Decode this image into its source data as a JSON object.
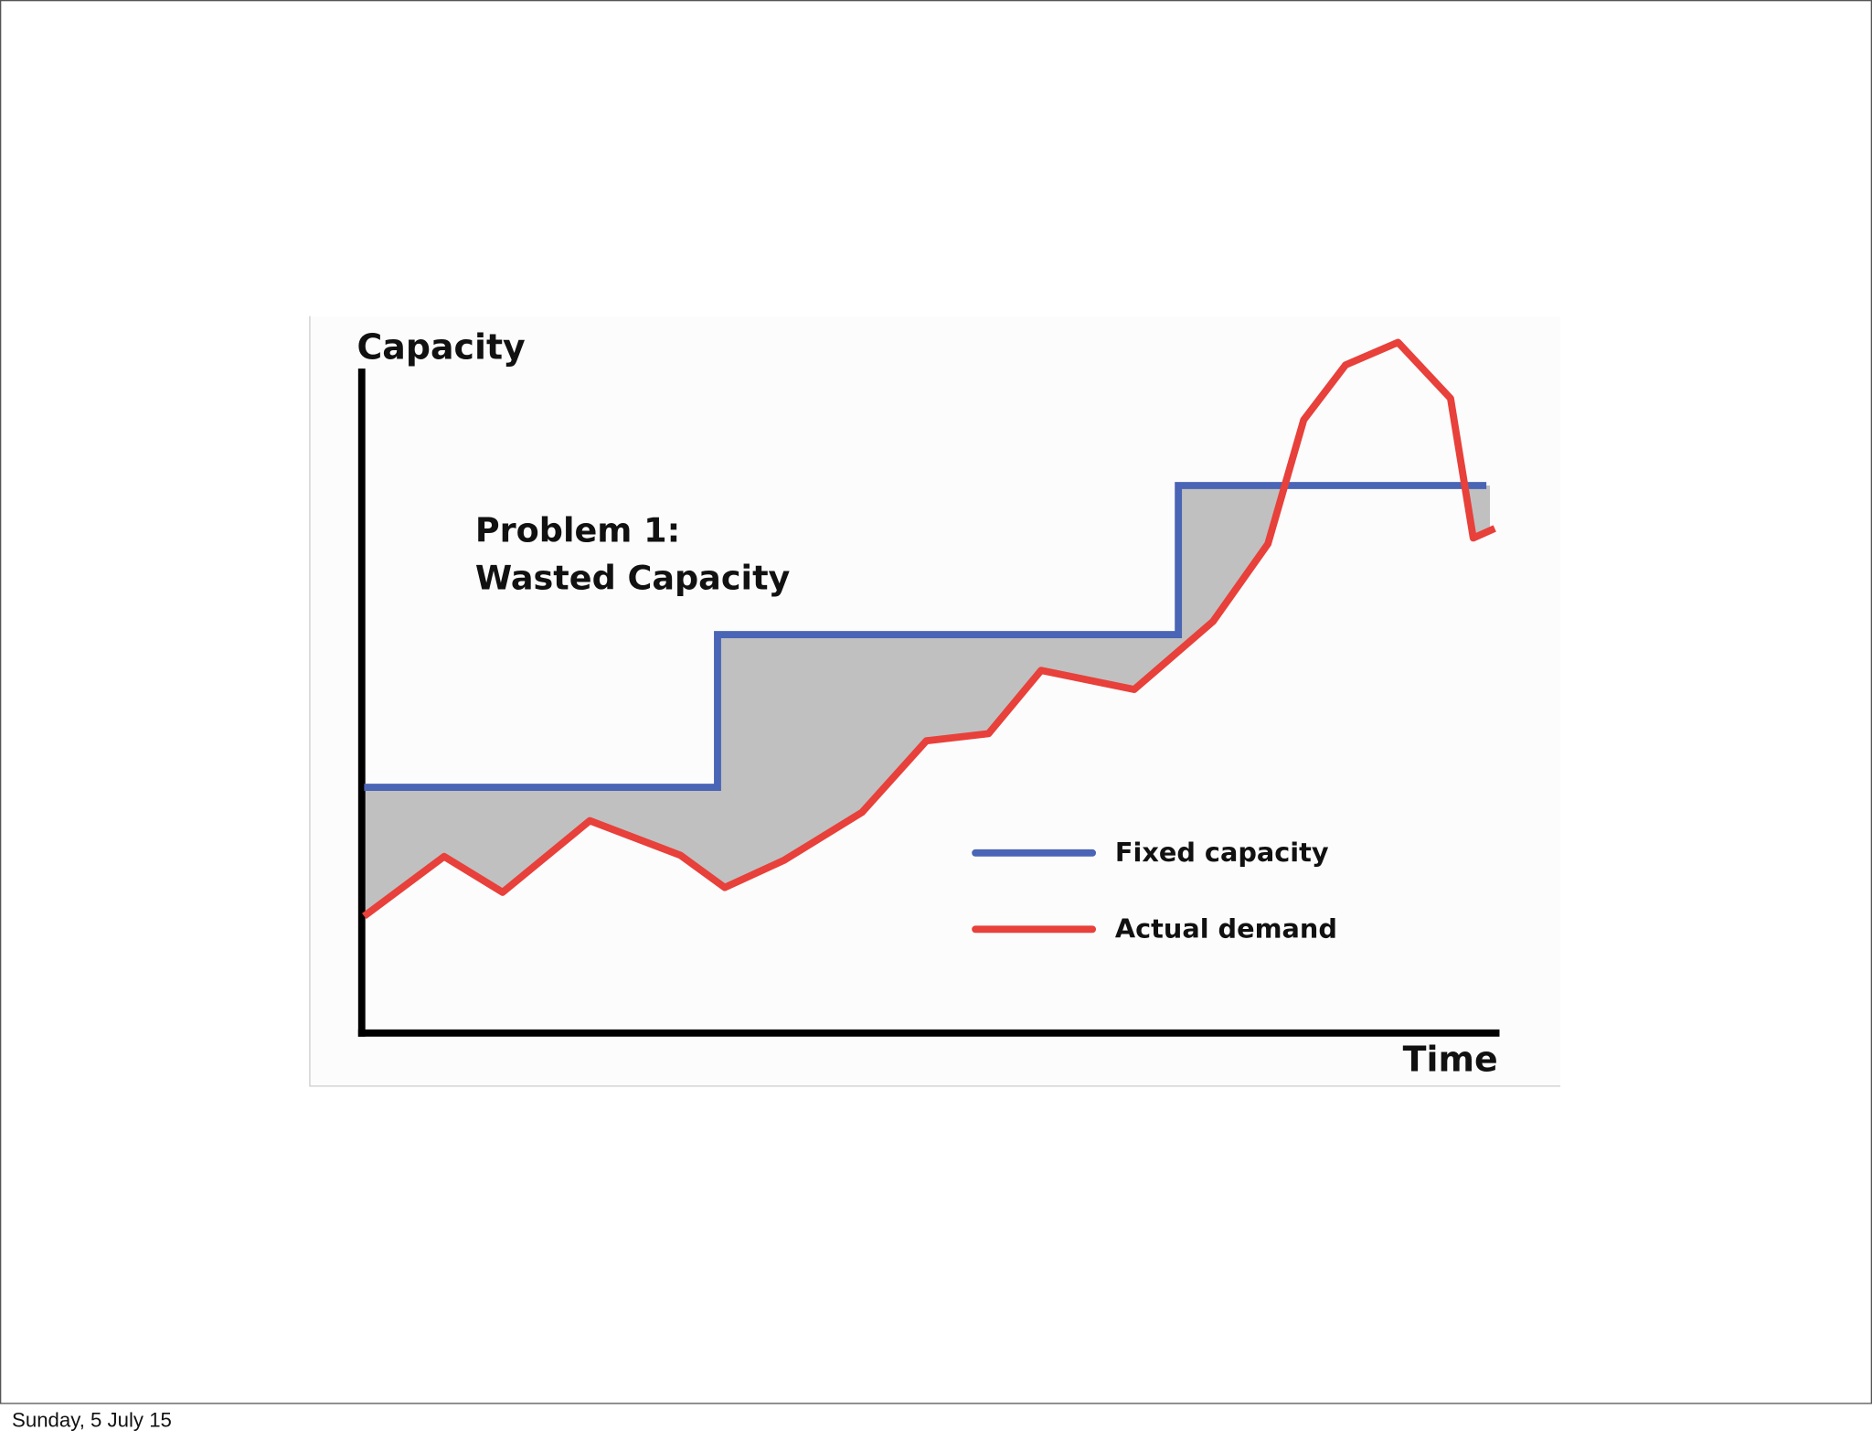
{
  "slide": {
    "footer_date": "Sunday, 5 July 15",
    "figure": {
      "y_axis_label": "Capacity",
      "x_axis_label": "Time",
      "annotation": [
        "Problem 1:",
        "Wasted Capacity"
      ],
      "legend": [
        "Fixed capacity",
        "Actual demand"
      ]
    }
  }
}
